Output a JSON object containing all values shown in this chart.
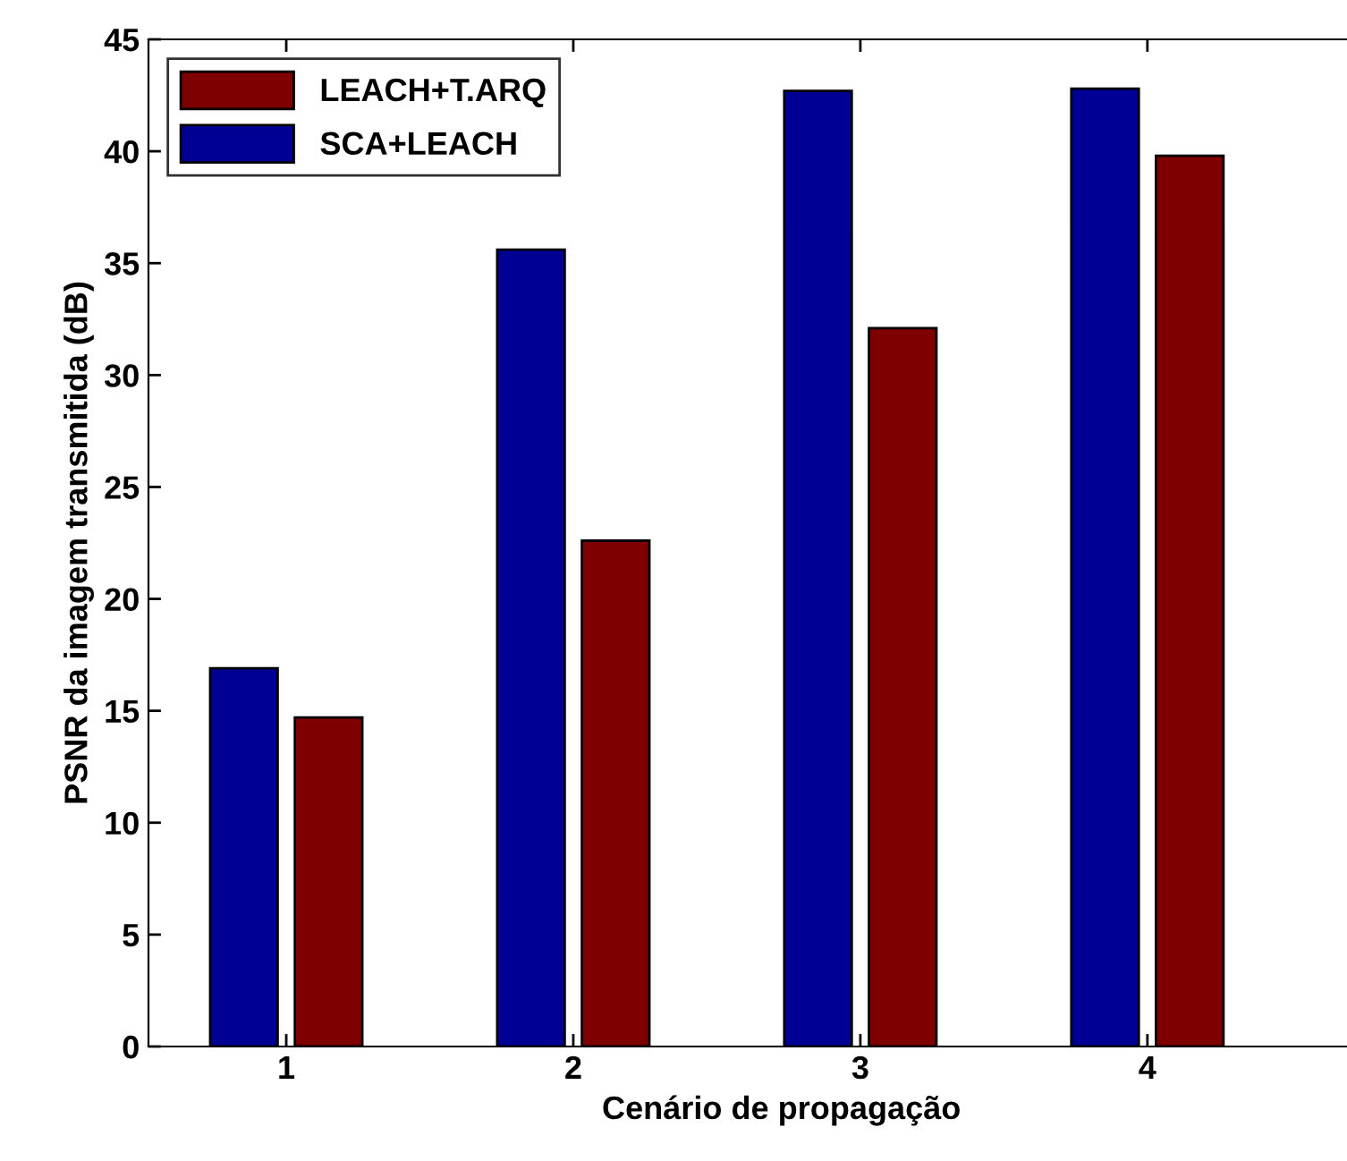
{
  "chart_data": {
    "type": "bar",
    "xlabel": "Cenário de propagação",
    "ylabel": "PSNR da imagem transmitida (dB)",
    "categories": [
      "1",
      "2",
      "3",
      "4"
    ],
    "series": [
      {
        "name": "SCA+LEACH",
        "color": "#000094",
        "values": [
          16.9,
          35.6,
          42.7,
          42.8
        ]
      },
      {
        "name": "LEACH+T.ARQ",
        "color": "#7f0000",
        "values": [
          14.7,
          22.6,
          32.1,
          39.8
        ]
      }
    ],
    "ylim": [
      0,
      45
    ],
    "yticks": [
      0,
      5,
      10,
      15,
      20,
      25,
      30,
      35,
      40,
      45
    ],
    "grid": false,
    "legend": "top left"
  }
}
